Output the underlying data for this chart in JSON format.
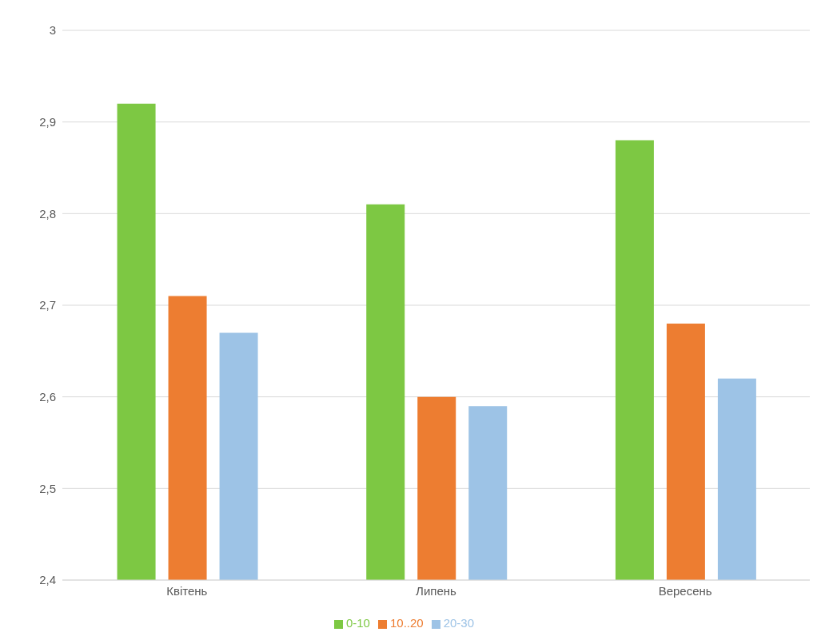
{
  "chart_data": {
    "type": "bar",
    "categories": [
      "Квітень",
      "Липень",
      "Вересень"
    ],
    "series": [
      {
        "name": "0-10",
        "color": "#7dc843",
        "values": [
          2.92,
          2.81,
          2.88
        ]
      },
      {
        "name": "10..20",
        "color": "#ed7d31",
        "values": [
          2.71,
          2.6,
          2.68
        ]
      },
      {
        "name": "20-30",
        "color": "#9dc3e6",
        "values": [
          2.67,
          2.59,
          2.62
        ]
      }
    ],
    "ylim": [
      2.4,
      3
    ],
    "yticks": [
      {
        "value": 2.4,
        "label": "2,4"
      },
      {
        "value": 2.5,
        "label": "2,5"
      },
      {
        "value": 2.6,
        "label": "2,6"
      },
      {
        "value": 2.7,
        "label": "2,7"
      },
      {
        "value": 2.8,
        "label": "2,8"
      },
      {
        "value": 2.9,
        "label": "2,9"
      },
      {
        "value": 3,
        "label": "3"
      }
    ],
    "grid": "y",
    "legend": "bottom"
  }
}
